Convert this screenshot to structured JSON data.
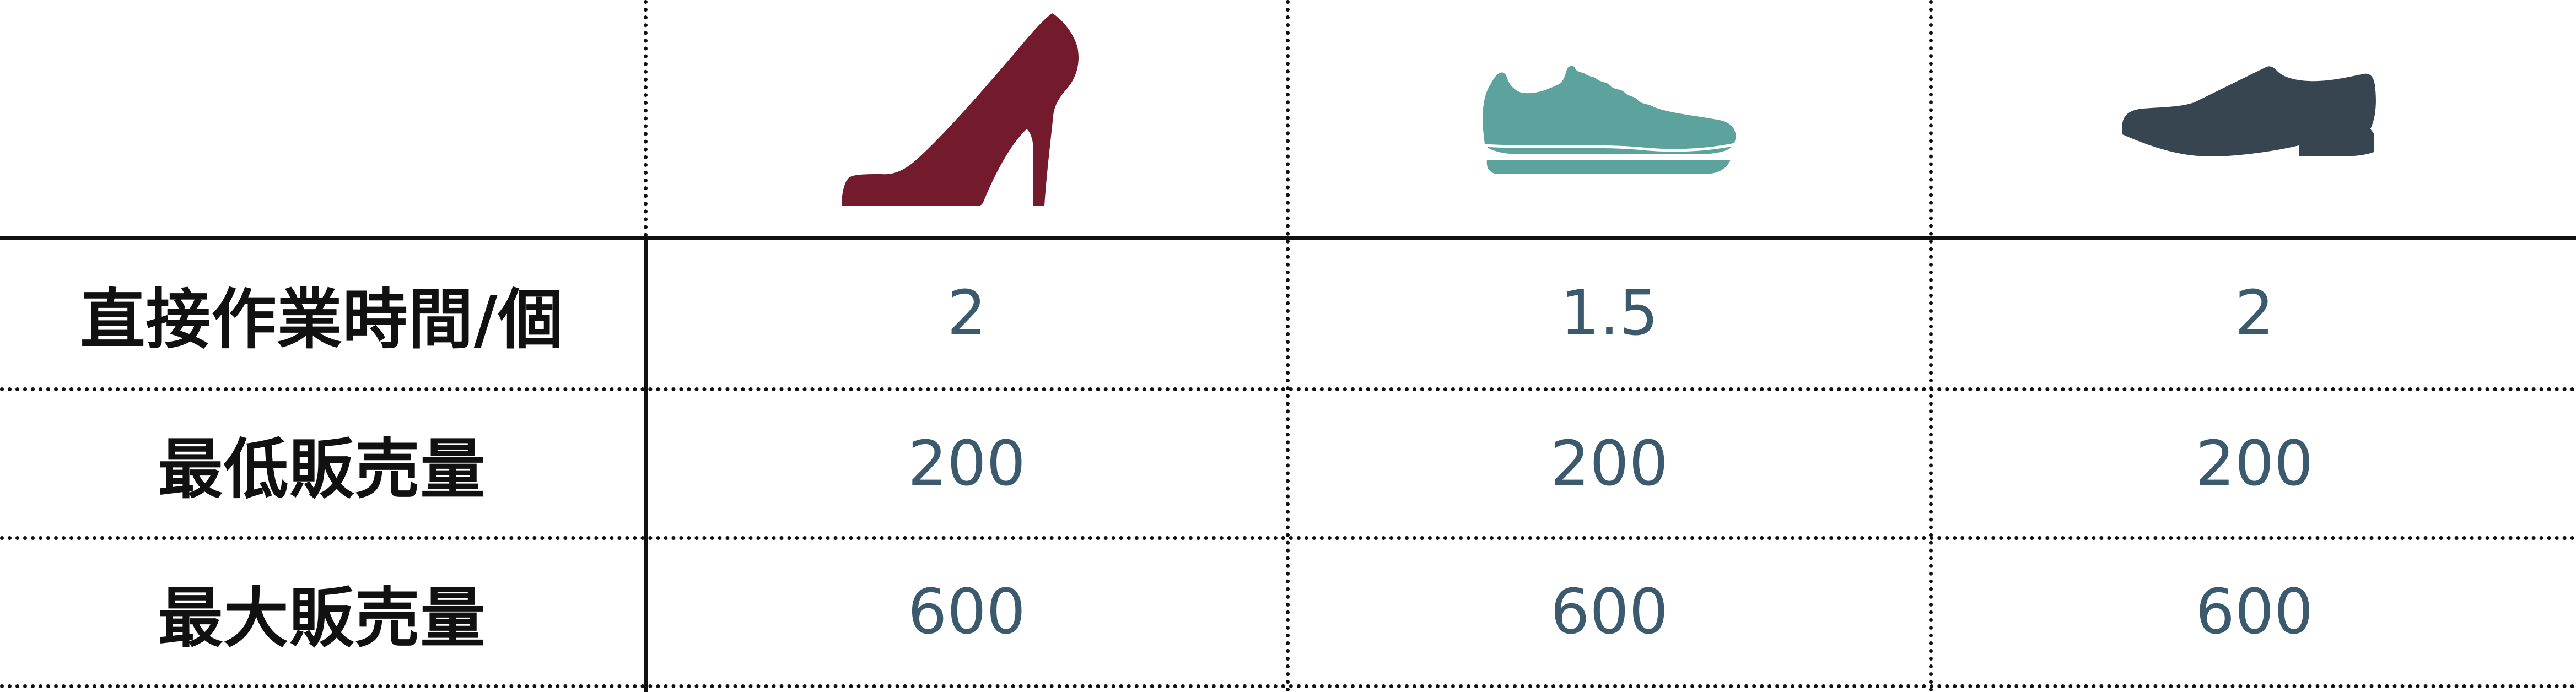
{
  "table": {
    "columns": [
      {
        "icon": "high-heel-icon",
        "color": "#741a2d"
      },
      {
        "icon": "sneaker-icon",
        "color": "#5ba39c"
      },
      {
        "icon": "dress-shoe-icon",
        "color": "#36454f"
      }
    ],
    "rows": [
      {
        "label": "直接作業時間/個",
        "values": [
          "2",
          "1.5",
          "2"
        ]
      },
      {
        "label": "最低販売量",
        "values": [
          "200",
          "200",
          "200"
        ]
      },
      {
        "label": "最大販売量",
        "values": [
          "600",
          "600",
          "600"
        ]
      }
    ]
  }
}
